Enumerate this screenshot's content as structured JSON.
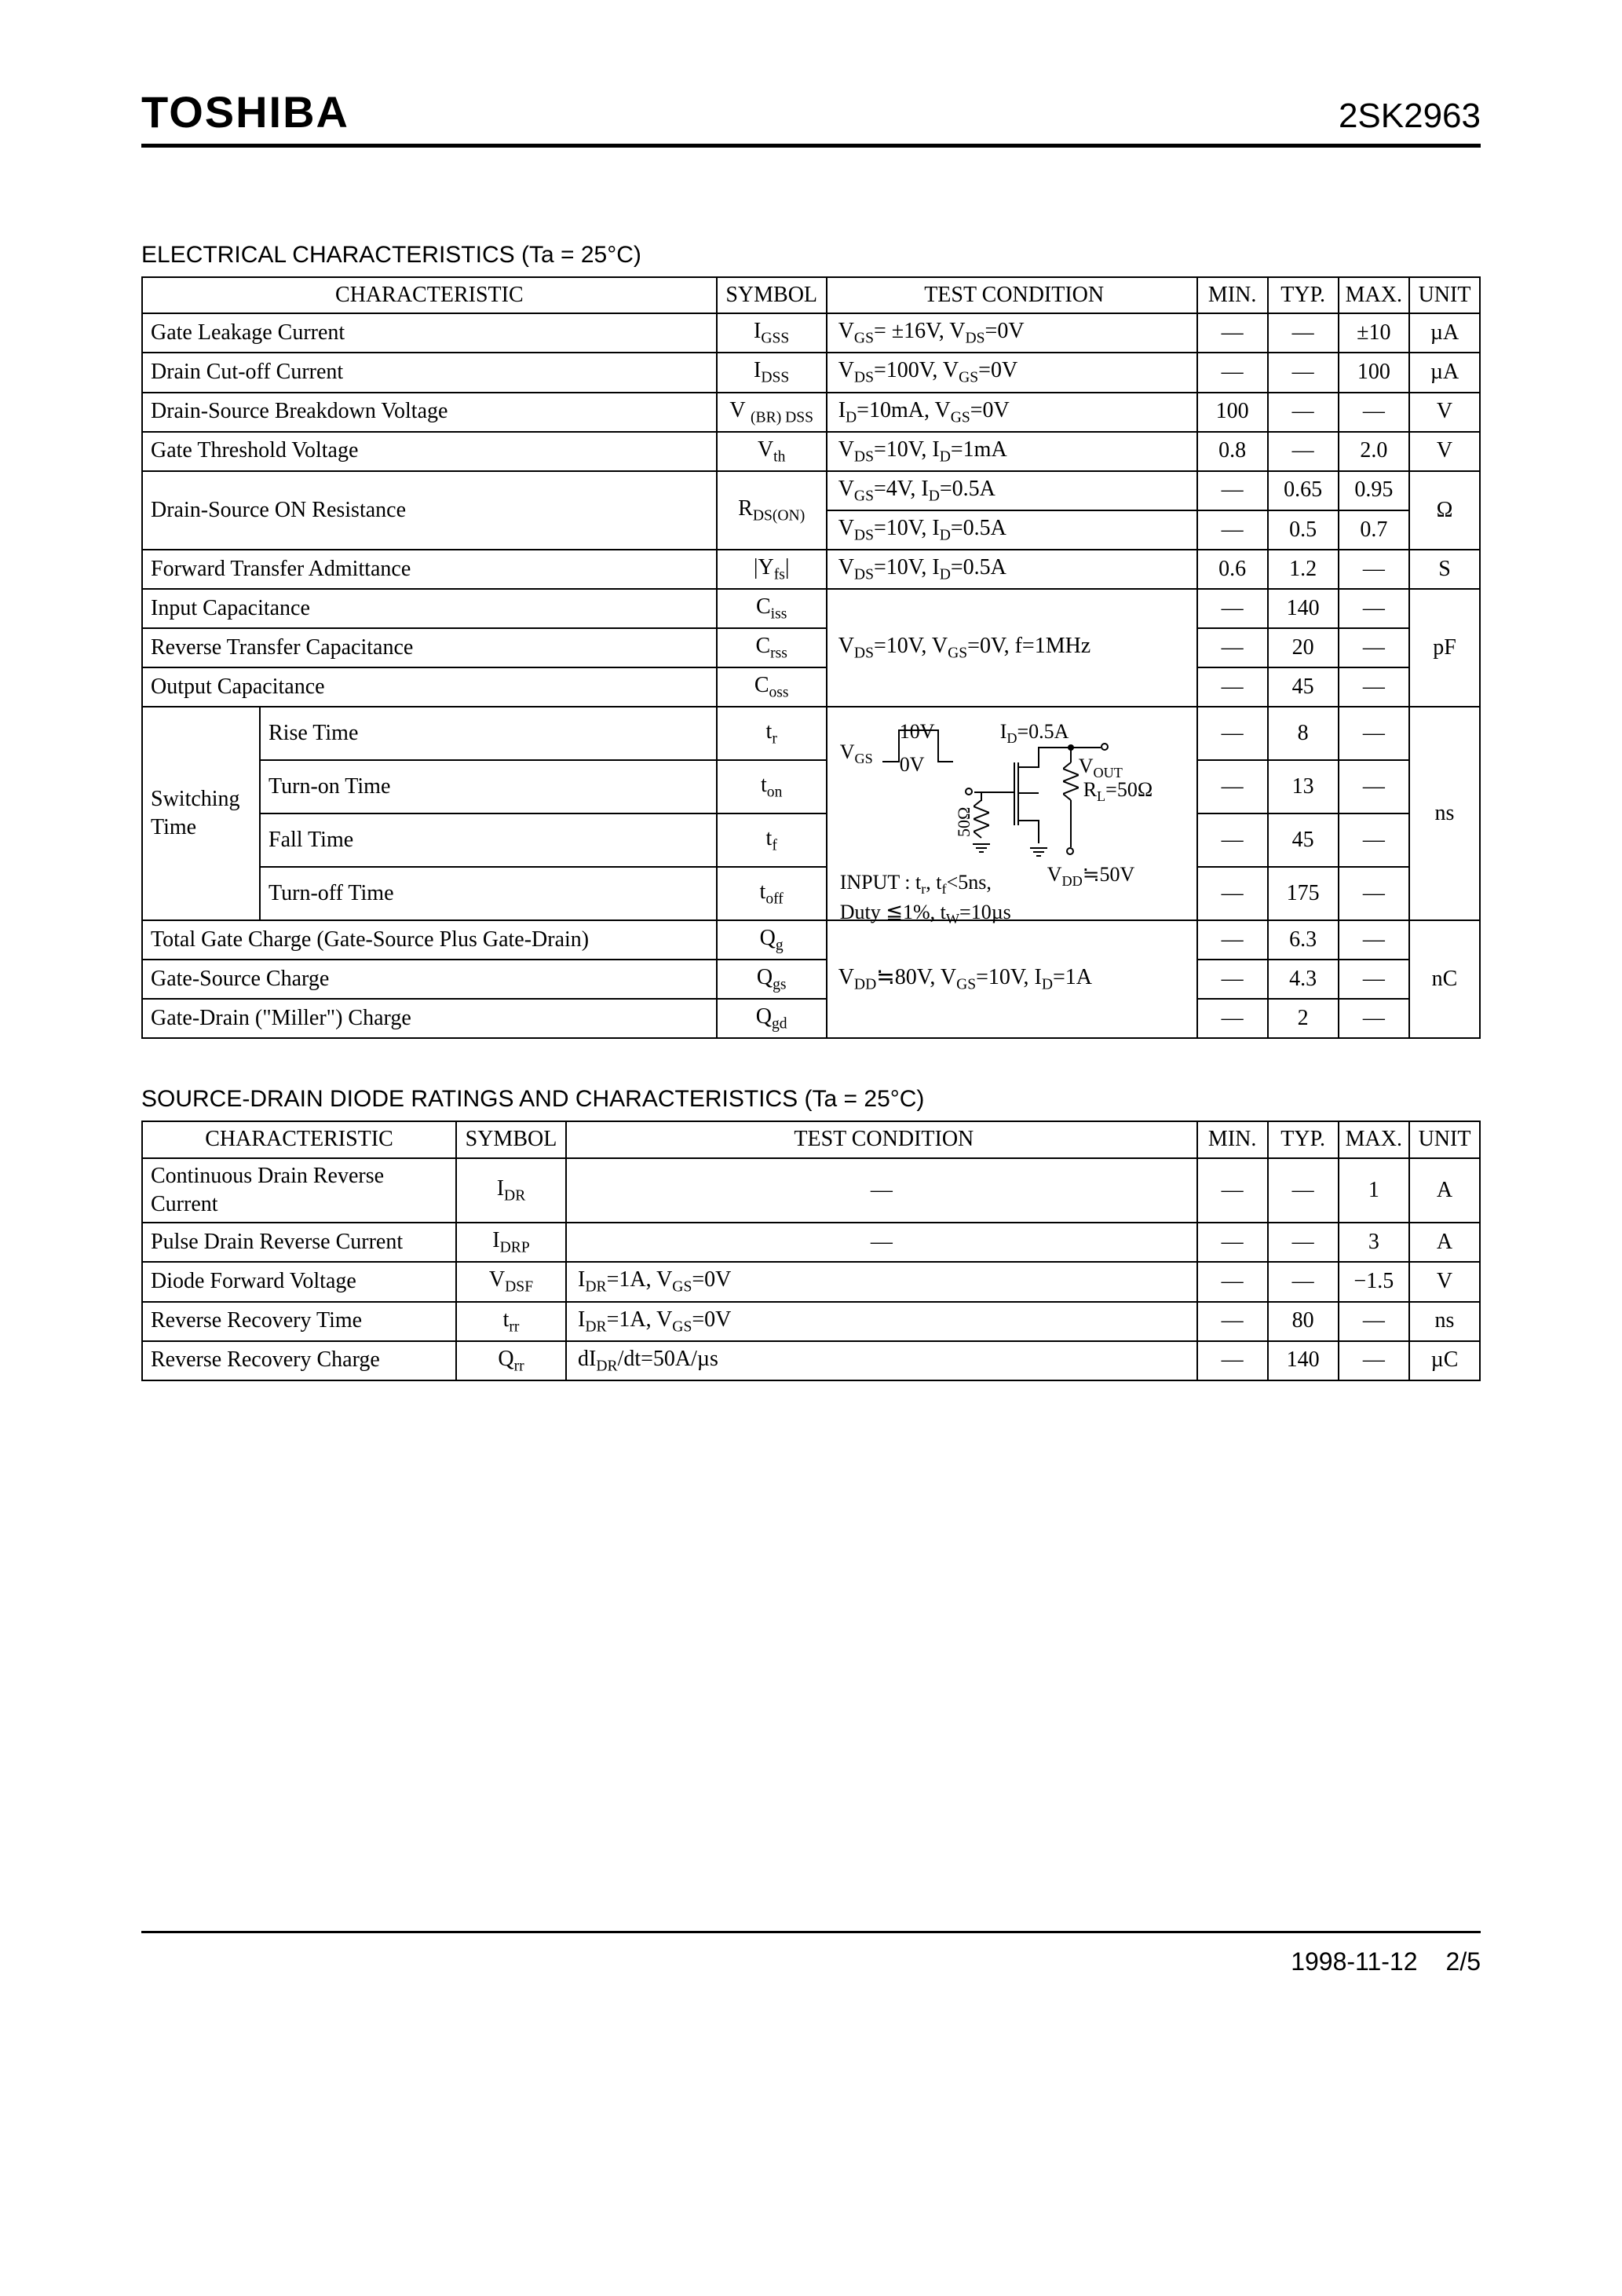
{
  "header": {
    "brand": "TOSHIBA",
    "part": "2SK2963"
  },
  "section1": "ELECTRICAL CHARACTERISTICS (Ta = 25°C)",
  "section2": "SOURCE-DRAIN DIODE RATINGS AND CHARACTERISTICS (Ta = 25°C)",
  "headers": {
    "char": "CHARACTERISTIC",
    "sym": "SYMBOL",
    "cond": "TEST CONDITION",
    "min": "MIN.",
    "typ": "TYP.",
    "max": "MAX.",
    "unit": "UNIT"
  },
  "t1": {
    "r1": {
      "char": "Gate Leakage Current",
      "sym": "I<sub>GSS</sub>",
      "cond": "V<sub>GS</sub>= ±16V, V<sub>DS</sub>=0V",
      "min": "—",
      "typ": "—",
      "max": "±10",
      "unit": "µA"
    },
    "r2": {
      "char": "Drain Cut-off Current",
      "sym": "I<sub>DSS</sub>",
      "cond": "V<sub>DS</sub>=100V, V<sub>GS</sub>=0V",
      "min": "—",
      "typ": "—",
      "max": "100",
      "unit": "µA"
    },
    "r3": {
      "char": "Drain-Source Breakdown Voltage",
      "sym": "V <sub>(BR) DSS</sub>",
      "cond": "I<sub>D</sub>=10mA, V<sub>GS</sub>=0V",
      "min": "100",
      "typ": "—",
      "max": "—",
      "unit": "V"
    },
    "r4": {
      "char": "Gate Threshold Voltage",
      "sym": "V<sub>th</sub>",
      "cond": "V<sub>DS</sub>=10V, I<sub>D</sub>=1mA",
      "min": "0.8",
      "typ": "—",
      "max": "2.0",
      "unit": "V"
    },
    "r5": {
      "char": "Drain-Source ON Resistance",
      "sym": "R<sub>DS(ON)</sub>",
      "cond1": "V<sub>GS</sub>=4V, I<sub>D</sub>=0.5A",
      "cond2": "V<sub>DS</sub>=10V, I<sub>D</sub>=0.5A",
      "min1": "—",
      "typ1": "0.65",
      "max1": "0.95",
      "min2": "—",
      "typ2": "0.5",
      "max2": "0.7",
      "unit": "Ω"
    },
    "r6": {
      "char": "Forward Transfer Admittance",
      "sym": "|Y<sub>fs</sub>|",
      "cond": "V<sub>DS</sub>=10V, I<sub>D</sub>=0.5A",
      "min": "0.6",
      "typ": "1.2",
      "max": "—",
      "unit": "S"
    },
    "r7": {
      "char": "Input Capacitance",
      "sym": "C<sub>iss</sub>",
      "min": "—",
      "typ": "140",
      "max": "—"
    },
    "r8": {
      "char": "Reverse Transfer Capacitance",
      "sym": "C<sub>rss</sub>",
      "cond": "V<sub>DS</sub>=10V, V<sub>GS</sub>=0V, f=1MHz",
      "min": "—",
      "typ": "20",
      "max": "—",
      "unit": "pF"
    },
    "r9": {
      "char": "Output Capacitance",
      "sym": "C<sub>oss</sub>",
      "min": "—",
      "typ": "45",
      "max": "—"
    },
    "sw": {
      "group": "Switching Time",
      "a": "Rise Time",
      "b": "Turn-on Time",
      "c": "Fall Time",
      "d": "Turn-off Time",
      "sa": "t<sub>r</sub>",
      "sb": "t<sub>on</sub>",
      "sc": "t<sub>f</sub>",
      "sd": "t<sub>off</sub>",
      "ta": "8",
      "tb": "13",
      "tc": "45",
      "td": "175",
      "unit": "ns",
      "note": "INPUT : t<sub>r</sub>, t<sub>f</sub><5ns,<br>Duty ≦1%, t<sub>W</sub>=10µs",
      "vdd": "V<sub>DD</sub>≒50V"
    },
    "r10": {
      "char": "Total Gate Charge (Gate-Source Plus Gate-Drain)",
      "sym": "Q<sub>g</sub>",
      "min": "—",
      "typ": "6.3",
      "max": "—"
    },
    "r11": {
      "char": "Gate-Source Charge",
      "sym": "Q<sub>gs</sub>",
      "cond": "V<sub>DD</sub>≒80V, V<sub>GS</sub>=10V, I<sub>D</sub>=1A",
      "min": "—",
      "typ": "4.3",
      "max": "—",
      "unit": "nC"
    },
    "r12": {
      "char": "Gate-Drain (\"Miller\") Charge",
      "sym": "Q<sub>gd</sub>",
      "min": "—",
      "typ": "2",
      "max": "—"
    }
  },
  "circuit": {
    "vgs": "V<sub>GS</sub>",
    "ten": "10V",
    "zero": "0V",
    "id": "I<sub>D</sub>=0.5A",
    "vout": "V<sub>OUT</sub>",
    "rl": "R<sub>L</sub>=50Ω",
    "fifty": "50Ω"
  },
  "t2": {
    "r1": {
      "char": "Continuous Drain Reverse Current",
      "sym": "I<sub>DR</sub>",
      "cond": "—",
      "min": "—",
      "typ": "—",
      "max": "1",
      "unit": "A"
    },
    "r2": {
      "char": "Pulse Drain Reverse Current",
      "sym": "I<sub>DRP</sub>",
      "cond": "—",
      "min": "—",
      "typ": "—",
      "max": "3",
      "unit": "A"
    },
    "r3": {
      "char": "Diode Forward Voltage",
      "sym": "V<sub>DSF</sub>",
      "cond": "I<sub>DR</sub>=1A, V<sub>GS</sub>=0V",
      "min": "—",
      "typ": "—",
      "max": "−1.5",
      "unit": "V"
    },
    "r4": {
      "char": "Reverse Recovery Time",
      "sym": "t<sub>rr</sub>",
      "cond": "I<sub>DR</sub>=1A, V<sub>GS</sub>=0V",
      "min": "—",
      "typ": "80",
      "max": "—",
      "unit": "ns"
    },
    "r5": {
      "char": "Reverse Recovery Charge",
      "sym": "Q<sub>rr</sub>",
      "cond": "dI<sub>DR</sub>/dt=50A/µs",
      "min": "—",
      "typ": "140",
      "max": "—",
      "unit": "µC"
    }
  },
  "footer": {
    "date": "1998-11-12",
    "page": "2/5"
  }
}
